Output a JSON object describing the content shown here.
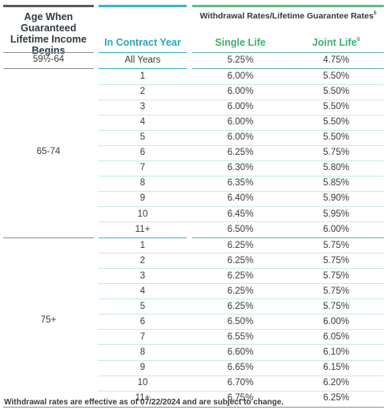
{
  "header": {
    "age_title": "Age When Guaranteed Lifetime Income Begins",
    "rates_title": "Withdrawal Rates/Lifetime Guarantee Rates",
    "rates_sup": "5",
    "col_year": "In Contract Year",
    "col_single": "Single Life",
    "col_joint": "Joint Life",
    "col_joint_sup": "6"
  },
  "groups": [
    {
      "age": "59½-64",
      "rows": [
        {
          "year": "All Years",
          "single": "5.25%",
          "joint": "4.75%"
        }
      ]
    },
    {
      "age": "65-74",
      "rows": [
        {
          "year": "1",
          "single": "6.00%",
          "joint": "5.50%"
        },
        {
          "year": "2",
          "single": "6.00%",
          "joint": "5.50%"
        },
        {
          "year": "3",
          "single": "6.00%",
          "joint": "5.50%"
        },
        {
          "year": "4",
          "single": "6.00%",
          "joint": "5.50%"
        },
        {
          "year": "5",
          "single": "6.00%",
          "joint": "5.50%"
        },
        {
          "year": "6",
          "single": "6.25%",
          "joint": "5.75%"
        },
        {
          "year": "7",
          "single": "6.30%",
          "joint": "5.80%"
        },
        {
          "year": "8",
          "single": "6.35%",
          "joint": "5.85%"
        },
        {
          "year": "9",
          "single": "6.40%",
          "joint": "5.90%"
        },
        {
          "year": "10",
          "single": "6.45%",
          "joint": "5.95%"
        },
        {
          "year": "11+",
          "single": "6.50%",
          "joint": "6.00%"
        }
      ]
    },
    {
      "age": "75+",
      "rows": [
        {
          "year": "1",
          "single": "6.25%",
          "joint": "5.75%"
        },
        {
          "year": "2",
          "single": "6.25%",
          "joint": "5.75%"
        },
        {
          "year": "3",
          "single": "6.25%",
          "joint": "5.75%"
        },
        {
          "year": "4",
          "single": "6.25%",
          "joint": "5.75%"
        },
        {
          "year": "5",
          "single": "6.25%",
          "joint": "5.75%"
        },
        {
          "year": "6",
          "single": "6.50%",
          "joint": "6.00%"
        },
        {
          "year": "7",
          "single": "6.55%",
          "joint": "6.05%"
        },
        {
          "year": "8",
          "single": "6.60%",
          "joint": "6.10%"
        },
        {
          "year": "9",
          "single": "6.65%",
          "joint": "6.15%"
        },
        {
          "year": "10",
          "single": "6.70%",
          "joint": "6.20%"
        },
        {
          "year": "11+",
          "single": "6.75%",
          "joint": "6.25%"
        }
      ]
    }
  ],
  "footnote": "Withdrawal rates are effective as of 07/22/2024 and are subject to change.",
  "colors": {
    "dark_rule": "#555a5e",
    "teal": "#34b8c3",
    "green": "#5cbd8a",
    "row_rule": "#c8e8ec"
  }
}
